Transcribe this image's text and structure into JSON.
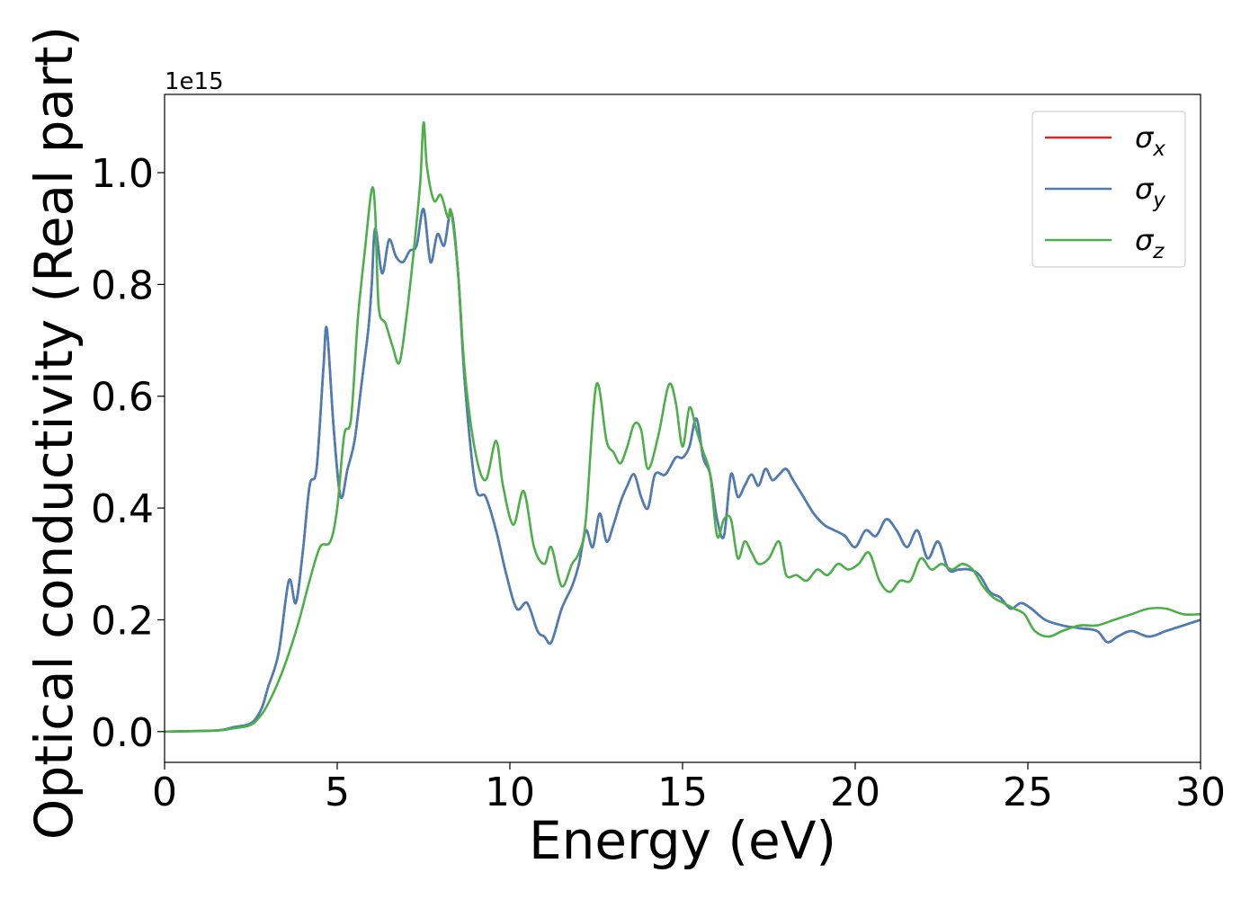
{
  "chart_data": {
    "type": "line",
    "title": "",
    "xlabel": "Energy (eV)",
    "ylabel": "Optical conductivity (Real part)",
    "y_offset_label": "1e15",
    "xlim": [
      0,
      30
    ],
    "ylim": [
      -0.055,
      1.14
    ],
    "xticks": [
      0,
      5,
      10,
      15,
      20,
      25,
      30
    ],
    "xtick_labels": [
      "0",
      "5",
      "10",
      "15",
      "20",
      "25",
      "30"
    ],
    "yticks": [
      0.0,
      0.2,
      0.4,
      0.6,
      0.8,
      1.0
    ],
    "ytick_labels": [
      "0.0",
      "0.2",
      "0.4",
      "0.6",
      "0.8",
      "1.0"
    ],
    "grid": false,
    "legend_position": "top-right",
    "series": [
      {
        "name": "σx",
        "legend_symbol": "σ",
        "legend_subscript": "x",
        "color": "#d62728",
        "x": [
          0,
          1.5,
          2.0,
          2.5,
          2.8,
          3.0,
          3.3,
          3.6,
          3.8,
          4.0,
          4.2,
          4.4,
          4.6,
          4.7,
          4.9,
          5.1,
          5.3,
          5.5,
          5.7,
          5.9,
          6.0,
          6.1,
          6.3,
          6.5,
          6.7,
          6.9,
          7.1,
          7.3,
          7.5,
          7.7,
          7.9,
          8.1,
          8.3,
          8.5,
          8.7,
          9.0,
          9.3,
          9.6,
          9.9,
          10.2,
          10.5,
          10.8,
          11.0,
          11.2,
          11.5,
          11.8,
          12.0,
          12.2,
          12.4,
          12.6,
          12.8,
          13.0,
          13.2,
          13.4,
          13.6,
          13.8,
          14.0,
          14.2,
          14.5,
          14.8,
          15.0,
          15.2,
          15.4,
          15.6,
          15.8,
          16.0,
          16.2,
          16.4,
          16.6,
          16.8,
          17.0,
          17.2,
          17.4,
          17.6,
          17.8,
          18.0,
          18.2,
          18.5,
          18.8,
          19.1,
          19.4,
          19.7,
          20.0,
          20.3,
          20.6,
          20.9,
          21.2,
          21.5,
          21.8,
          22.1,
          22.4,
          22.7,
          23.0,
          23.3,
          23.6,
          23.9,
          24.2,
          24.5,
          24.8,
          25.1,
          25.5,
          26.0,
          26.5,
          27.0,
          27.3,
          27.6,
          28.0,
          28.5,
          29.0,
          29.5,
          30.0
        ],
        "values": [
          0.0,
          0.002,
          0.008,
          0.015,
          0.04,
          0.08,
          0.14,
          0.27,
          0.23,
          0.32,
          0.44,
          0.47,
          0.65,
          0.72,
          0.54,
          0.42,
          0.47,
          0.52,
          0.62,
          0.72,
          0.8,
          0.9,
          0.82,
          0.88,
          0.85,
          0.84,
          0.86,
          0.87,
          0.935,
          0.84,
          0.89,
          0.87,
          0.93,
          0.82,
          0.62,
          0.44,
          0.42,
          0.36,
          0.28,
          0.22,
          0.23,
          0.18,
          0.17,
          0.16,
          0.22,
          0.26,
          0.3,
          0.36,
          0.33,
          0.39,
          0.34,
          0.37,
          0.41,
          0.44,
          0.46,
          0.42,
          0.4,
          0.46,
          0.46,
          0.49,
          0.49,
          0.51,
          0.56,
          0.49,
          0.46,
          0.38,
          0.35,
          0.46,
          0.42,
          0.44,
          0.46,
          0.44,
          0.47,
          0.45,
          0.46,
          0.47,
          0.45,
          0.42,
          0.39,
          0.37,
          0.36,
          0.35,
          0.33,
          0.36,
          0.35,
          0.38,
          0.36,
          0.33,
          0.36,
          0.31,
          0.34,
          0.29,
          0.29,
          0.29,
          0.28,
          0.25,
          0.24,
          0.22,
          0.23,
          0.22,
          0.2,
          0.19,
          0.185,
          0.18,
          0.16,
          0.17,
          0.18,
          0.17,
          0.18,
          0.19,
          0.2
        ]
      },
      {
        "name": "σy",
        "legend_symbol": "σ",
        "legend_subscript": "y",
        "color": "#4a7fb5",
        "x": [
          0,
          1.5,
          2.0,
          2.5,
          2.8,
          3.0,
          3.3,
          3.6,
          3.8,
          4.0,
          4.2,
          4.4,
          4.6,
          4.7,
          4.9,
          5.1,
          5.3,
          5.5,
          5.7,
          5.9,
          6.0,
          6.1,
          6.3,
          6.5,
          6.7,
          6.9,
          7.1,
          7.3,
          7.5,
          7.7,
          7.9,
          8.1,
          8.3,
          8.5,
          8.7,
          9.0,
          9.3,
          9.6,
          9.9,
          10.2,
          10.5,
          10.8,
          11.0,
          11.2,
          11.5,
          11.8,
          12.0,
          12.2,
          12.4,
          12.6,
          12.8,
          13.0,
          13.2,
          13.4,
          13.6,
          13.8,
          14.0,
          14.2,
          14.5,
          14.8,
          15.0,
          15.2,
          15.4,
          15.6,
          15.8,
          16.0,
          16.2,
          16.4,
          16.6,
          16.8,
          17.0,
          17.2,
          17.4,
          17.6,
          17.8,
          18.0,
          18.2,
          18.5,
          18.8,
          19.1,
          19.4,
          19.7,
          20.0,
          20.3,
          20.6,
          20.9,
          21.2,
          21.5,
          21.8,
          22.1,
          22.4,
          22.7,
          23.0,
          23.3,
          23.6,
          23.9,
          24.2,
          24.5,
          24.8,
          25.1,
          25.5,
          26.0,
          26.5,
          27.0,
          27.3,
          27.6,
          28.0,
          28.5,
          29.0,
          29.5,
          30.0
        ],
        "values": [
          0.0,
          0.002,
          0.008,
          0.015,
          0.04,
          0.08,
          0.14,
          0.27,
          0.23,
          0.32,
          0.44,
          0.47,
          0.65,
          0.72,
          0.54,
          0.42,
          0.47,
          0.52,
          0.62,
          0.72,
          0.8,
          0.9,
          0.82,
          0.88,
          0.85,
          0.84,
          0.86,
          0.87,
          0.935,
          0.84,
          0.89,
          0.87,
          0.93,
          0.82,
          0.62,
          0.44,
          0.42,
          0.36,
          0.28,
          0.22,
          0.23,
          0.18,
          0.17,
          0.16,
          0.22,
          0.26,
          0.3,
          0.36,
          0.33,
          0.39,
          0.34,
          0.37,
          0.41,
          0.44,
          0.46,
          0.42,
          0.4,
          0.46,
          0.46,
          0.49,
          0.49,
          0.51,
          0.56,
          0.49,
          0.46,
          0.38,
          0.35,
          0.46,
          0.42,
          0.44,
          0.46,
          0.44,
          0.47,
          0.45,
          0.46,
          0.47,
          0.45,
          0.42,
          0.39,
          0.37,
          0.36,
          0.35,
          0.33,
          0.36,
          0.35,
          0.38,
          0.36,
          0.33,
          0.36,
          0.31,
          0.34,
          0.29,
          0.29,
          0.29,
          0.28,
          0.25,
          0.24,
          0.22,
          0.23,
          0.22,
          0.2,
          0.19,
          0.185,
          0.18,
          0.16,
          0.17,
          0.18,
          0.17,
          0.18,
          0.19,
          0.2
        ]
      },
      {
        "name": "σz",
        "legend_symbol": "σ",
        "legend_subscript": "z",
        "color": "#4daf4a",
        "x": [
          0,
          1.5,
          2.0,
          2.5,
          2.8,
          3.0,
          3.3,
          3.6,
          3.9,
          4.2,
          4.5,
          4.8,
          5.0,
          5.2,
          5.4,
          5.6,
          5.8,
          6.0,
          6.1,
          6.2,
          6.4,
          6.6,
          6.8,
          7.0,
          7.2,
          7.4,
          7.5,
          7.6,
          7.8,
          8.0,
          8.2,
          8.3,
          8.5,
          8.7,
          9.0,
          9.3,
          9.6,
          9.8,
          10.1,
          10.4,
          10.7,
          11.0,
          11.2,
          11.5,
          11.8,
          12.0,
          12.2,
          12.5,
          12.8,
          13.0,
          13.2,
          13.4,
          13.6,
          13.8,
          14.0,
          14.3,
          14.6,
          14.8,
          15.0,
          15.2,
          15.4,
          15.6,
          15.8,
          16.0,
          16.2,
          16.4,
          16.6,
          16.8,
          17.0,
          17.2,
          17.5,
          17.8,
          18.0,
          18.3,
          18.6,
          18.9,
          19.2,
          19.5,
          19.8,
          20.1,
          20.4,
          20.7,
          21.0,
          21.3,
          21.6,
          21.9,
          22.2,
          22.5,
          22.8,
          23.1,
          23.4,
          23.7,
          24.0,
          24.3,
          24.6,
          24.9,
          25.2,
          25.6,
          26.0,
          26.5,
          27.0,
          27.5,
          28.0,
          28.5,
          29.0,
          29.5,
          30.0
        ],
        "values": [
          0.0,
          0.002,
          0.006,
          0.012,
          0.03,
          0.05,
          0.09,
          0.14,
          0.2,
          0.27,
          0.33,
          0.34,
          0.4,
          0.53,
          0.56,
          0.74,
          0.86,
          0.97,
          0.93,
          0.76,
          0.73,
          0.69,
          0.66,
          0.74,
          0.85,
          0.98,
          1.09,
          1.01,
          0.95,
          0.96,
          0.92,
          0.93,
          0.82,
          0.64,
          0.5,
          0.45,
          0.52,
          0.44,
          0.37,
          0.43,
          0.33,
          0.3,
          0.33,
          0.26,
          0.3,
          0.32,
          0.38,
          0.62,
          0.52,
          0.5,
          0.48,
          0.51,
          0.55,
          0.54,
          0.47,
          0.53,
          0.62,
          0.59,
          0.51,
          0.58,
          0.54,
          0.5,
          0.46,
          0.35,
          0.38,
          0.38,
          0.31,
          0.34,
          0.32,
          0.3,
          0.31,
          0.34,
          0.28,
          0.28,
          0.27,
          0.29,
          0.28,
          0.3,
          0.29,
          0.3,
          0.32,
          0.27,
          0.25,
          0.27,
          0.27,
          0.31,
          0.29,
          0.3,
          0.29,
          0.3,
          0.29,
          0.26,
          0.24,
          0.23,
          0.22,
          0.21,
          0.18,
          0.17,
          0.18,
          0.19,
          0.19,
          0.2,
          0.21,
          0.22,
          0.22,
          0.21,
          0.21
        ]
      }
    ]
  }
}
